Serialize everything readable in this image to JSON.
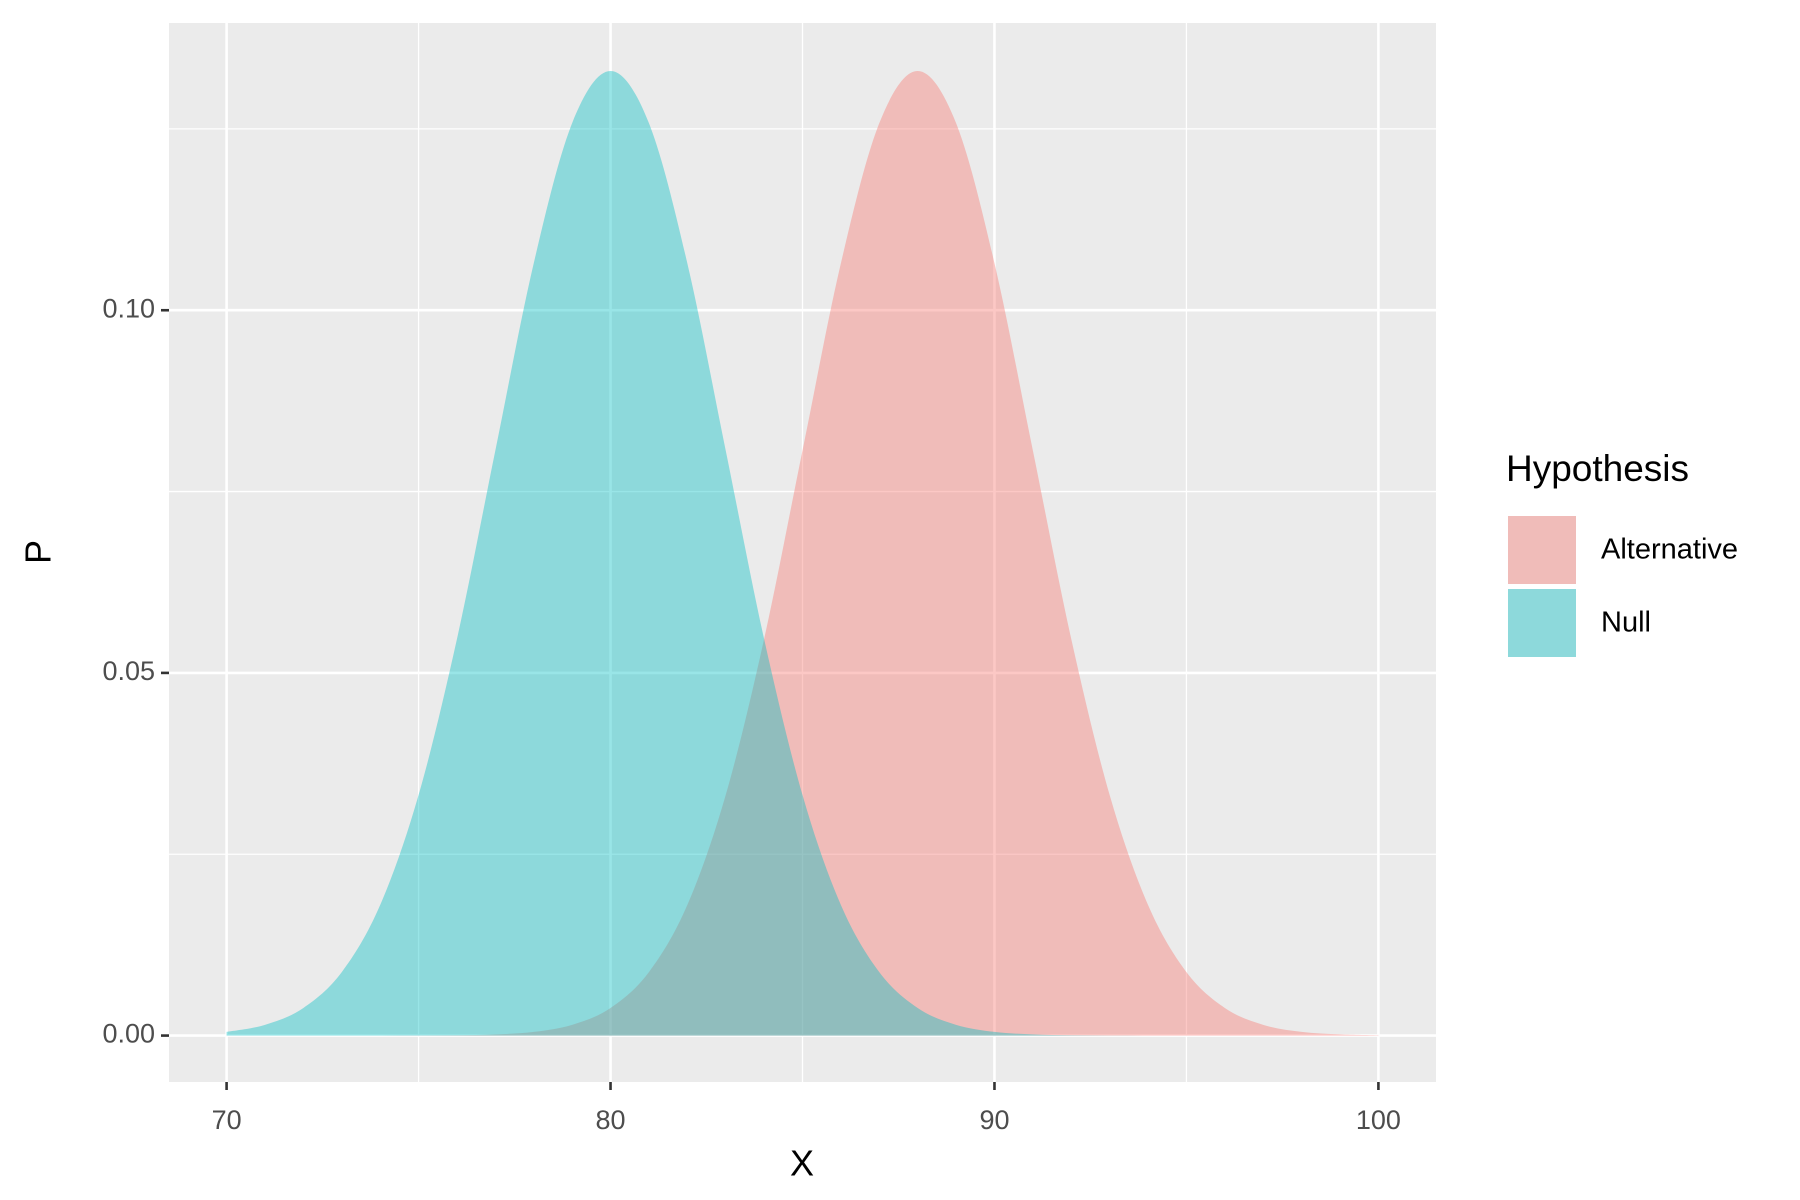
{
  "chart_data": {
    "type": "area",
    "x": [
      70,
      71,
      72,
      73,
      74,
      75,
      76,
      77,
      78,
      79,
      80,
      81,
      82,
      83,
      84,
      85,
      86,
      87,
      88,
      89,
      90,
      91,
      92,
      93,
      94,
      95,
      96,
      97,
      98,
      99,
      100
    ],
    "series": [
      {
        "name": "Alternative",
        "color": "#F8766D",
        "alpha": 0.4,
        "values": [
          0,
          0,
          0,
          0,
          0,
          1e-05,
          4e-05,
          0.00016,
          0.00051,
          0.00148,
          0.0038,
          0.00874,
          0.018,
          0.03316,
          0.05467,
          0.08066,
          0.10648,
          0.12579,
          0.13298,
          0.12579,
          0.10648,
          0.08066,
          0.05467,
          0.03316,
          0.018,
          0.00874,
          0.0038,
          0.00148,
          0.00051,
          0.00016,
          4e-05
        ]
      },
      {
        "name": "Null",
        "color": "#00BFC4",
        "alpha": 0.4,
        "values": [
          0.00051,
          0.00148,
          0.0038,
          0.00874,
          0.018,
          0.03316,
          0.05467,
          0.08066,
          0.10648,
          0.12579,
          0.13298,
          0.12579,
          0.10648,
          0.08066,
          0.05467,
          0.03316,
          0.018,
          0.00874,
          0.0038,
          0.00148,
          0.00051,
          0.00016,
          4e-05,
          1e-05,
          0,
          0,
          0,
          0,
          0,
          0,
          0
        ]
      }
    ],
    "x_label": "X",
    "y_label": "P",
    "legend_title": "Hypothesis",
    "legend_position": "right",
    "xlim": [
      68.5,
      101.5
    ],
    "ylim": [
      -0.0064,
      0.1396
    ],
    "xticks": [
      70,
      80,
      90,
      100
    ],
    "yticks": [
      {
        "value": 0,
        "label": "0.00"
      },
      {
        "value": 0.05,
        "label": "0.05"
      },
      {
        "value": 0.1,
        "label": "0.10"
      }
    ],
    "minor_xticks": [
      75,
      85,
      95
    ],
    "minor_yticks": [
      0.025,
      0.075,
      0.125
    ],
    "grid": true
  }
}
